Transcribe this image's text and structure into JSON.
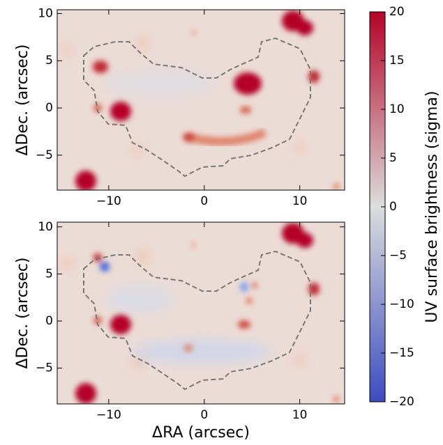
{
  "chart_data": [
    {
      "type": "image",
      "ylabel": "ΔDec. (arcsec)",
      "xlim": [
        -15.4,
        14.7
      ],
      "ylim": [
        -8.7,
        10.4
      ],
      "xticks": [
        {
          "value": -10,
          "label": "−10"
        },
        0,
        10
      ],
      "yticks": [
        {
          "value": -5,
          "label": "−5"
        },
        0,
        5,
        10
      ]
    },
    {
      "type": "image",
      "ylabel": "ΔDec. (arcsec)",
      "xlabel": "ΔRA (arcsec)",
      "xlim": [
        -15.4,
        14.7
      ],
      "ylim": [
        -8.8,
        10.5
      ],
      "xticks": [
        {
          "value": -10,
          "label": "−10"
        },
        0,
        10
      ],
      "yticks": [
        {
          "value": -5,
          "label": "−5"
        },
        0,
        5,
        10
      ]
    },
    {
      "type": "colorbar",
      "label": "UV surface brightness (sigma)",
      "ylim": [
        -20,
        20
      ],
      "yticks": [
        {
          "value": -20,
          "label": "−20"
        },
        {
          "value": -15,
          "label": "−15"
        },
        {
          "value": -10,
          "label": "−10"
        },
        {
          "value": -5,
          "label": "−5"
        },
        0,
        5,
        10,
        15,
        20
      ],
      "colors": [
        "#3b4cc0",
        "#dcdddd",
        "#b40426"
      ]
    }
  ]
}
